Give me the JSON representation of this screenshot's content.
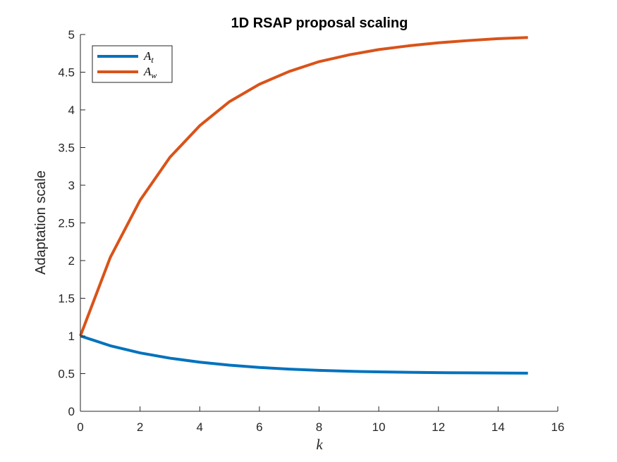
{
  "chart_data": {
    "type": "line",
    "title": "1D RSAP proposal scaling",
    "xlabel": "k",
    "ylabel": "Adaptation scale",
    "xlim": [
      0,
      16
    ],
    "ylim": [
      0,
      5
    ],
    "xticks": [
      0,
      2,
      4,
      6,
      8,
      10,
      12,
      14,
      16
    ],
    "yticks": [
      0,
      0.5,
      1,
      1.5,
      2,
      2.5,
      3,
      3.5,
      4,
      4.5,
      5
    ],
    "ytick_labels": [
      "0",
      "0.5",
      "1",
      "1.5",
      "2",
      "2.5",
      "3",
      "3.5",
      "4",
      "4.5",
      "5"
    ],
    "x": [
      0,
      1,
      2,
      3,
      4,
      5,
      6,
      7,
      8,
      9,
      10,
      11,
      12,
      13,
      14,
      15
    ],
    "grid": false,
    "legend_position": "top-left",
    "series": [
      {
        "name": "A",
        "subscript": "t",
        "color": "#0072BD",
        "values": [
          1.0,
          0.87,
          0.775,
          0.705,
          0.652,
          0.612,
          0.582,
          0.56,
          0.543,
          0.531,
          0.523,
          0.517,
          0.513,
          0.51,
          0.508,
          0.506
        ]
      },
      {
        "name": "A",
        "subscript": "w",
        "color": "#D95319",
        "values": [
          1.0,
          2.04,
          2.8,
          3.37,
          3.79,
          4.11,
          4.34,
          4.51,
          4.64,
          4.73,
          4.8,
          4.85,
          4.89,
          4.92,
          4.945,
          4.96
        ]
      }
    ]
  }
}
